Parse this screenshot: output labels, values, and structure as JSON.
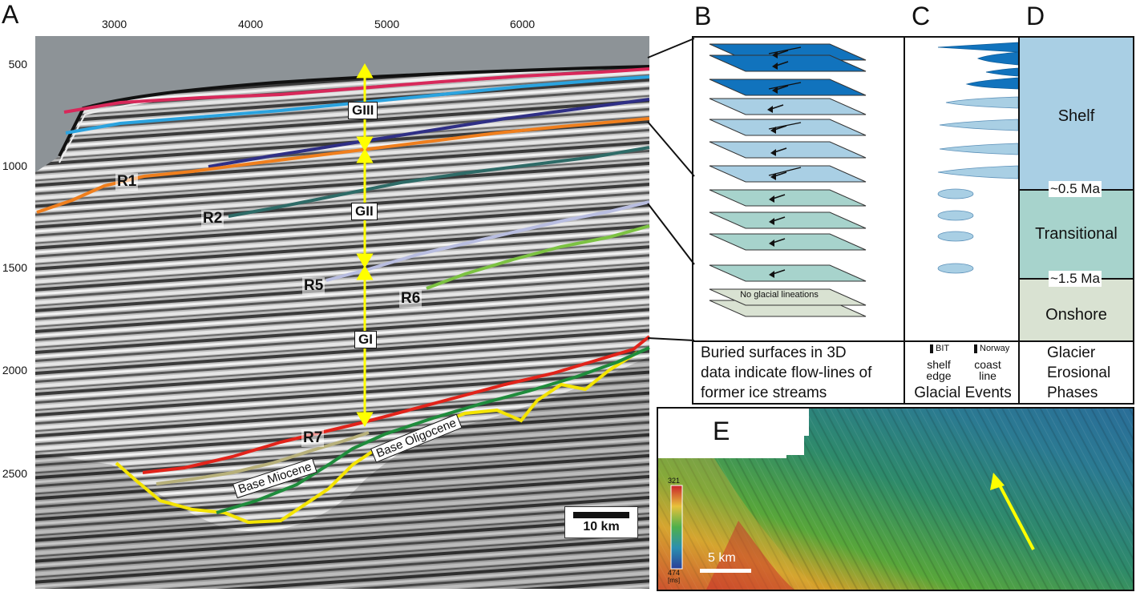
{
  "panels": {
    "A": "A",
    "B": "B",
    "C": "C",
    "D": "D",
    "E": "E"
  },
  "seismic": {
    "x_ticks": [
      "3000",
      "4000",
      "5000",
      "6000"
    ],
    "y_ticks": [
      "500",
      "1000",
      "1500",
      "2000",
      "2500"
    ],
    "reflectors": [
      {
        "name": "R1",
        "color": "#f07f1d"
      },
      {
        "name": "R2",
        "color": "#2e6b67"
      },
      {
        "name": "R5",
        "color": "#b8bde0"
      },
      {
        "name": "R6",
        "color": "#7cc242"
      },
      {
        "name": "R7",
        "color": "#e2231a"
      }
    ],
    "units": [
      "GIII",
      "GII",
      "GI"
    ],
    "horizons": [
      "Base Miocene",
      "Base Oligocene"
    ],
    "scale_bar": "10 km"
  },
  "panel_b": {
    "no_glacial_text": "No glacial lineations",
    "caption": [
      "Buried surfaces in 3D",
      "data indicate flow-lines of",
      "former ice streams"
    ]
  },
  "panel_c": {
    "bit_label": "BIT",
    "norway_label": "Norway",
    "shelf_edge": [
      "shelf",
      "edge"
    ],
    "coast_line": [
      "coast",
      "line"
    ],
    "caption": "Glacial Events"
  },
  "panel_d": {
    "phases": [
      "Shelf",
      "Transitional",
      "Onshore"
    ],
    "ages": [
      "~0.5 Ma",
      "~1.5 Ma"
    ],
    "caption": [
      "Glacier",
      "Erosional",
      "Phases"
    ],
    "colors": {
      "shelf": "#a9cfe4",
      "transitional": "#a7d3cc",
      "onshore": "#d9e2d2"
    }
  },
  "panel_e": {
    "colorbar_top": "321",
    "colorbar_bottom": "474",
    "colorbar_unit": "[ms]",
    "scale_bar": "5 km"
  }
}
